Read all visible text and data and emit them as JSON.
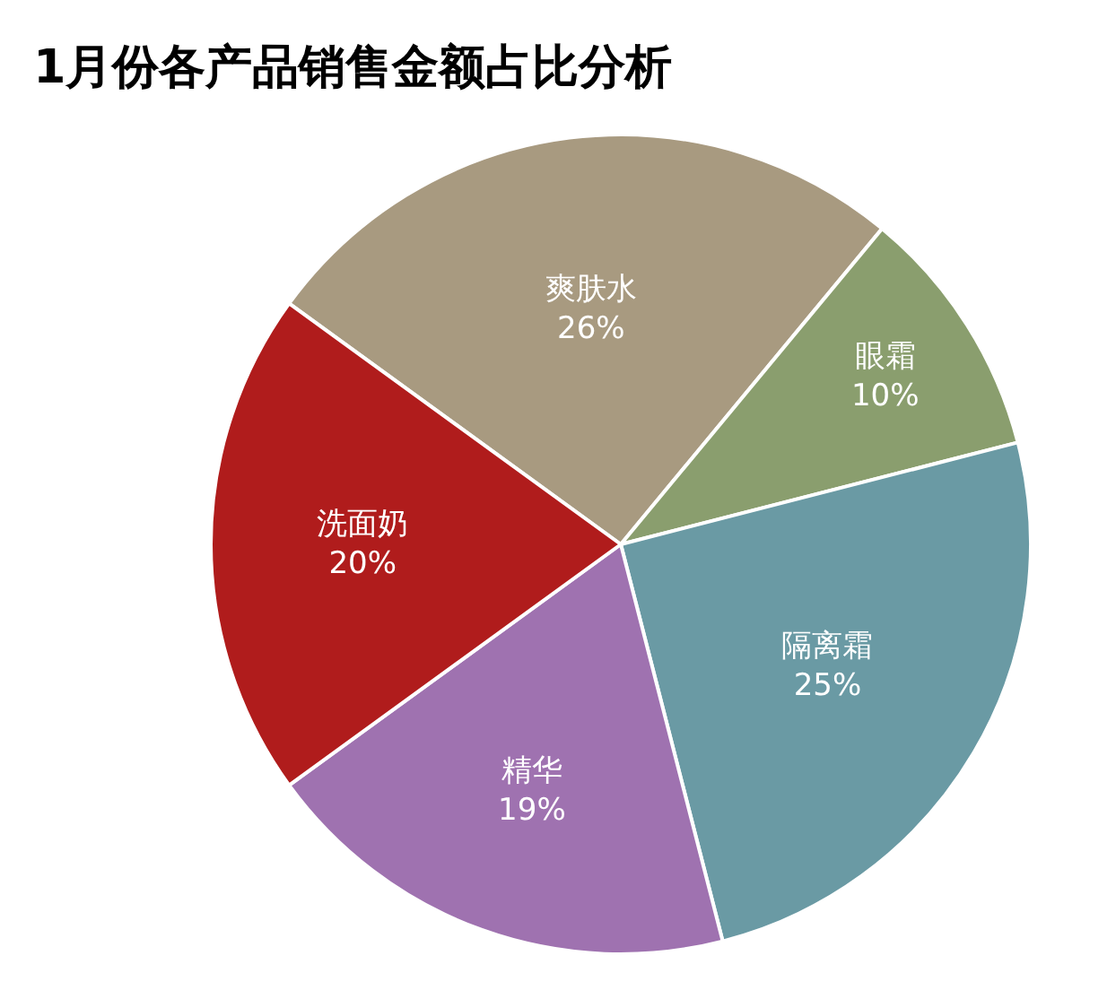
{
  "chart_data": {
    "type": "pie",
    "title": "1月份各产品销售金额占比分析",
    "categories": [
      "爽肤水",
      "眼霜",
      "隔离霜",
      "精华",
      "洗面奶"
    ],
    "values": [
      26,
      10,
      25,
      19,
      20
    ],
    "value_labels": [
      "26%",
      "10%",
      "25%",
      "19%",
      "20%"
    ],
    "colors": [
      "#a89a80",
      "#8a9e6e",
      "#6a9aa4",
      "#9f72b0",
      "#b01c1c"
    ],
    "legend": false
  }
}
